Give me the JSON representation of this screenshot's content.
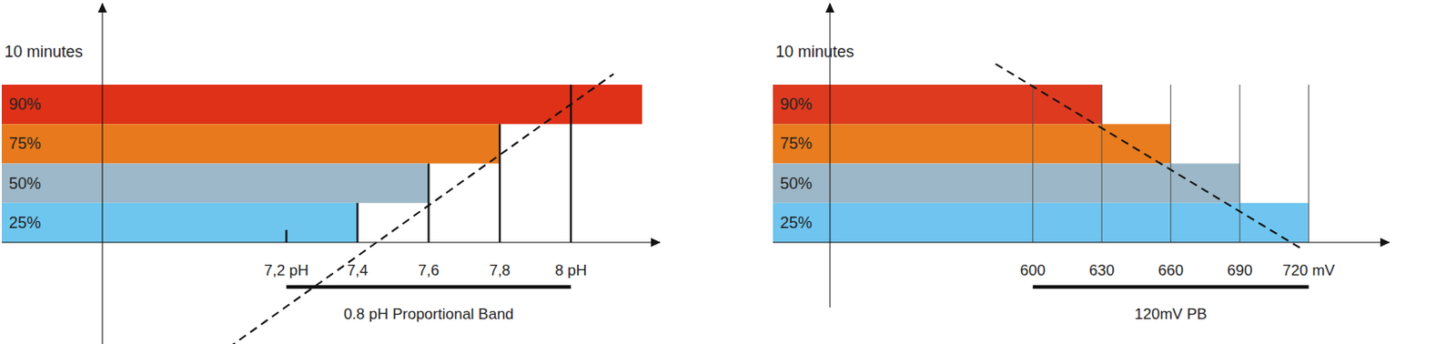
{
  "chart_data": [
    {
      "type": "bar",
      "orientation": "horizontal",
      "y_label": "10 minutes",
      "categories": [
        "90%",
        "75%",
        "50%",
        "25%"
      ],
      "values": [
        8.2,
        7.8,
        7.6,
        7.4
      ],
      "colors": [
        "#de3118",
        "#e8791c",
        "#9db8c8",
        "#6ec6ef"
      ],
      "xlim": [
        6.4,
        8.25
      ],
      "xticks": [
        {
          "value": 7.2,
          "label": "7,2 pH"
        },
        {
          "value": 7.4,
          "label": "7,4"
        },
        {
          "value": 7.6,
          "label": "7,6"
        },
        {
          "value": 7.8,
          "label": "7,8"
        },
        {
          "value": 8,
          "label": "8 pH"
        }
      ],
      "proportional_band": {
        "from": 7.2,
        "to": 8,
        "label": "0.8 pH Proportional Band"
      }
    },
    {
      "type": "bar",
      "orientation": "horizontal",
      "y_label": "10 minutes",
      "categories": [
        "90%",
        "75%",
        "50%",
        "25%"
      ],
      "values": [
        630,
        660,
        690,
        720
      ],
      "colors": [
        "#dd3a1f",
        "#e87c1f",
        "#9cb7c7",
        "#6fc5ef"
      ],
      "xlim": [
        487,
        755
      ],
      "xticks": [
        600,
        630,
        660,
        690,
        {
          "value": 720,
          "label": "720 mV"
        }
      ],
      "proportional_band": {
        "from": 600,
        "to": 720,
        "label": "120mV PB"
      }
    }
  ]
}
